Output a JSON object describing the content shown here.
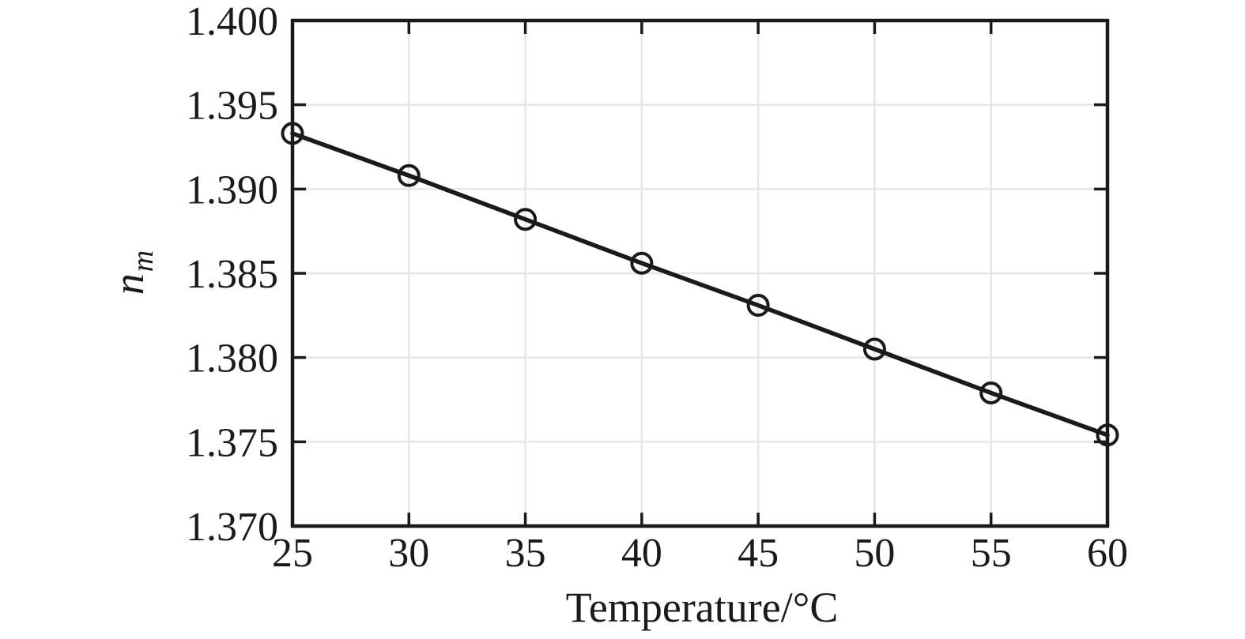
{
  "figure": {
    "xlabel": "Temperature/°C",
    "ylabel_main": "n",
    "ylabel_sub": "m"
  },
  "chart_data": {
    "type": "line",
    "title": "",
    "xlabel": "Temperature/°C",
    "ylabel": "n_m",
    "x": [
      25,
      30,
      35,
      40,
      45,
      50,
      55,
      60
    ],
    "series": [
      {
        "name": "n_m",
        "values": [
          1.3933,
          1.3908,
          1.3882,
          1.3856,
          1.3831,
          1.3805,
          1.3779,
          1.3754
        ],
        "marker": "open-circle",
        "line_style": "solid"
      }
    ],
    "xlim": [
      25,
      60
    ],
    "ylim": [
      1.37,
      1.4
    ],
    "xticks": [
      25,
      30,
      35,
      40,
      45,
      50,
      55,
      60
    ],
    "xtick_labels": [
      "25",
      "30",
      "35",
      "40",
      "45",
      "50",
      "55",
      "60"
    ],
    "yticks": [
      1.37,
      1.375,
      1.38,
      1.385,
      1.39,
      1.395,
      1.4
    ],
    "ytick_labels": [
      "1.370",
      "1.375",
      "1.380",
      "1.385",
      "1.390",
      "1.395",
      "1.400"
    ],
    "grid": true,
    "legend": "none",
    "box": true,
    "tick_direction": "in",
    "colors": {
      "line": "#1a1a1a",
      "axis": "#1a1a1a",
      "grid": "#e6e6e6",
      "text": "#1a1a1a",
      "background": "#ffffff"
    }
  }
}
